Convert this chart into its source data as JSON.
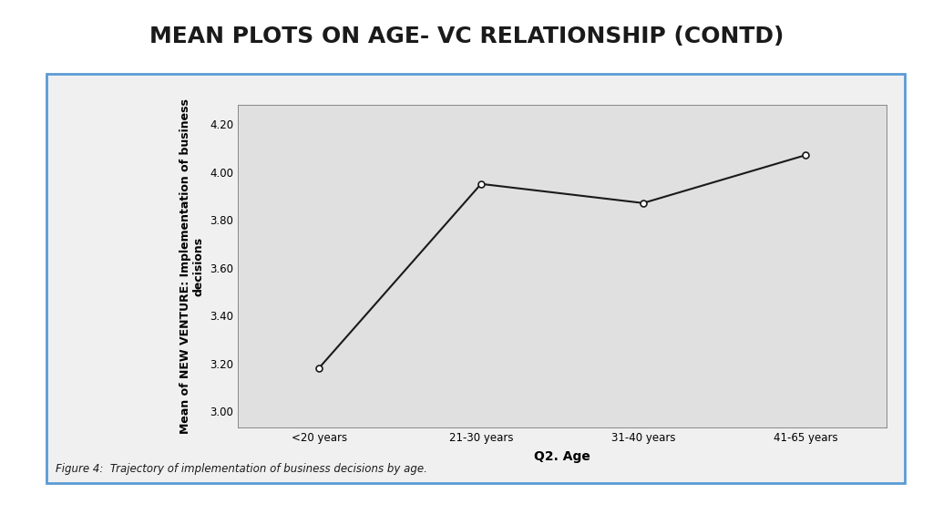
{
  "title": "MEAN PLOTS ON AGE- VC RELATIONSHIP (CONTD)",
  "title_fontsize": 18,
  "title_fontweight": "bold",
  "title_color": "#1a1a1a",
  "xlabel": "Q2. Age",
  "ylabel": "Mean of NEW VENTURE: Implementation of business\ndecisions",
  "xlabel_fontsize": 10,
  "xlabel_fontweight": "bold",
  "ylabel_fontsize": 9,
  "ylabel_fontweight": "bold",
  "x_categories": [
    "<20 years",
    "21-30 years",
    "31-40 years",
    "41-65 years"
  ],
  "y_values": [
    3.18,
    3.95,
    3.87,
    4.07
  ],
  "ylim": [
    2.93,
    4.28
  ],
  "yticks": [
    3.0,
    3.2,
    3.4,
    3.6,
    3.8,
    4.0,
    4.2
  ],
  "line_color": "#1a1a1a",
  "line_width": 1.5,
  "marker": "o",
  "marker_size": 5,
  "marker_facecolor": "#ffffff",
  "marker_edgecolor": "#1a1a1a",
  "marker_edgewidth": 1.2,
  "plot_bg_color": "#e0e0e0",
  "fig_bg_color": "#ffffff",
  "outer_border_color": "#5b9bd5",
  "outer_border_linewidth": 2.0,
  "inner_panel_bg": "#f0f0f0",
  "caption": "Figure 4:  Trajectory of implementation of business decisions by age.",
  "caption_fontsize": 8.5,
  "tick_fontsize": 8.5,
  "xtick_fontsize": 8.5
}
